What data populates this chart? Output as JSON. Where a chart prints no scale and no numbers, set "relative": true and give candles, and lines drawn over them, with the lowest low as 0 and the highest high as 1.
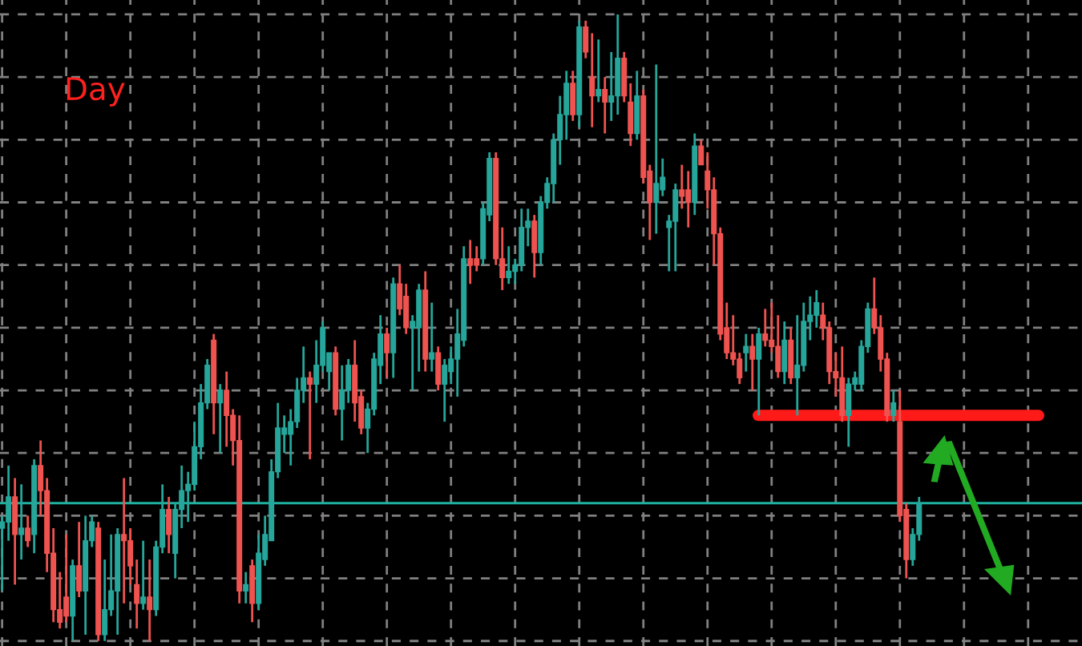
{
  "chart_data": {
    "type": "candlestick",
    "title": "Day",
    "relative": true,
    "grid": true,
    "tick_labels": false,
    "categories": [
      null,
      null,
      null,
      null,
      null,
      null,
      null,
      null,
      null,
      null,
      null,
      null,
      null,
      null,
      null,
      null,
      null,
      null,
      null,
      null,
      null,
      null,
      null,
      null,
      null,
      null,
      null,
      null,
      null,
      null,
      null,
      null,
      null,
      null,
      null,
      null,
      null,
      null,
      null,
      null,
      null,
      null,
      null,
      null,
      null,
      null,
      null,
      null,
      null,
      null,
      null,
      null,
      null,
      null,
      null,
      null,
      null,
      null,
      null,
      null,
      null,
      null,
      null,
      null,
      null,
      null,
      null,
      null,
      null,
      null,
      null,
      null,
      null,
      null,
      null,
      null,
      null,
      null,
      null,
      null,
      null,
      null,
      null,
      null,
      null,
      null,
      null,
      null,
      null,
      null,
      null,
      null,
      null,
      null,
      null,
      null,
      null,
      null,
      null,
      null,
      null,
      null,
      null,
      null,
      null,
      null,
      null,
      null,
      null,
      null,
      null,
      null,
      null,
      null,
      null,
      null,
      null,
      null,
      null,
      null,
      null,
      null,
      null,
      null,
      null,
      null,
      null,
      null,
      null,
      null,
      null,
      null,
      null,
      null,
      null,
      null,
      null,
      null,
      null,
      null,
      null,
      null,
      null,
      null
    ],
    "ohlc": [
      [
        0.18,
        0.2,
        0.08,
        0.19
      ],
      [
        0.19,
        0.28,
        0.16,
        0.23
      ],
      [
        0.23,
        0.26,
        0.09,
        0.17
      ],
      [
        0.17,
        0.25,
        0.13,
        0.18
      ],
      [
        0.18,
        0.2,
        0.15,
        0.16
      ],
      [
        0.17,
        0.29,
        0.14,
        0.28
      ],
      [
        0.28,
        0.32,
        0.2,
        0.24
      ],
      [
        0.24,
        0.26,
        0.11,
        0.14
      ],
      [
        0.14,
        0.18,
        0.03,
        0.05
      ],
      [
        0.05,
        0.11,
        0.02,
        0.03
      ],
      [
        0.07,
        0.17,
        0.03,
        0.04
      ],
      [
        0.04,
        0.13,
        0.0,
        0.12
      ],
      [
        0.12,
        0.19,
        0.07,
        0.08
      ],
      [
        0.08,
        0.2,
        0.01,
        0.16
      ],
      [
        0.16,
        0.2,
        0.15,
        0.19
      ],
      [
        0.18,
        0.19,
        0.0,
        0.01
      ],
      [
        0.01,
        0.13,
        0.0,
        0.05
      ],
      [
        0.05,
        0.17,
        0.04,
        0.08
      ],
      [
        0.08,
        0.18,
        0.01,
        0.17
      ],
      [
        0.17,
        0.26,
        0.06,
        0.16
      ],
      [
        0.16,
        0.18,
        0.09,
        0.12
      ],
      [
        0.09,
        0.13,
        0.02,
        0.06
      ],
      [
        0.06,
        0.16,
        0.05,
        0.07
      ],
      [
        0.07,
        0.13,
        0.0,
        0.05
      ],
      [
        0.05,
        0.16,
        0.04,
        0.15
      ],
      [
        0.15,
        0.25,
        0.14,
        0.21
      ],
      [
        0.21,
        0.23,
        0.14,
        0.17
      ],
      [
        0.14,
        0.22,
        0.1,
        0.21
      ],
      [
        0.21,
        0.28,
        0.18,
        0.24
      ],
      [
        0.24,
        0.27,
        0.19,
        0.25
      ],
      [
        0.25,
        0.35,
        0.24,
        0.31
      ],
      [
        0.31,
        0.41,
        0.29,
        0.38
      ],
      [
        0.38,
        0.45,
        0.37,
        0.44
      ],
      [
        0.48,
        0.49,
        0.33,
        0.38
      ],
      [
        0.38,
        0.41,
        0.3,
        0.4
      ],
      [
        0.4,
        0.43,
        0.31,
        0.36
      ],
      [
        0.36,
        0.37,
        0.28,
        0.32
      ],
      [
        0.32,
        0.36,
        0.06,
        0.08
      ],
      [
        0.08,
        0.11,
        0.06,
        0.09
      ],
      [
        0.12,
        0.13,
        0.03,
        0.06
      ],
      [
        0.06,
        0.17,
        0.05,
        0.14
      ],
      [
        0.13,
        0.2,
        0.12,
        0.17
      ],
      [
        0.16,
        0.29,
        0.16,
        0.27
      ],
      [
        0.27,
        0.38,
        0.26,
        0.34
      ],
      [
        0.33,
        0.36,
        0.3,
        0.34
      ],
      [
        0.33,
        0.37,
        0.28,
        0.35
      ],
      [
        0.35,
        0.42,
        0.34,
        0.4
      ],
      [
        0.4,
        0.47,
        0.38,
        0.42
      ],
      [
        0.42,
        0.43,
        0.29,
        0.41
      ],
      [
        0.41,
        0.48,
        0.38,
        0.44
      ],
      [
        0.44,
        0.51,
        0.43,
        0.5
      ],
      [
        0.43,
        0.46,
        0.4,
        0.46
      ],
      [
        0.46,
        0.47,
        0.36,
        0.37
      ],
      [
        0.37,
        0.44,
        0.32,
        0.4
      ],
      [
        0.4,
        0.45,
        0.38,
        0.44
      ],
      [
        0.44,
        0.48,
        0.35,
        0.38
      ],
      [
        0.39,
        0.4,
        0.33,
        0.34
      ],
      [
        0.34,
        0.38,
        0.3,
        0.37
      ],
      [
        0.37,
        0.46,
        0.36,
        0.45
      ],
      [
        0.44,
        0.52,
        0.41,
        0.49
      ],
      [
        0.49,
        0.5,
        0.42,
        0.46
      ],
      [
        0.46,
        0.58,
        0.42,
        0.57
      ],
      [
        0.57,
        0.6,
        0.52,
        0.53
      ],
      [
        0.55,
        0.57,
        0.49,
        0.5
      ],
      [
        0.5,
        0.52,
        0.4,
        0.51
      ],
      [
        0.5,
        0.57,
        0.43,
        0.56
      ],
      [
        0.56,
        0.59,
        0.43,
        0.45
      ],
      [
        0.45,
        0.54,
        0.43,
        0.46
      ],
      [
        0.46,
        0.47,
        0.4,
        0.41
      ],
      [
        0.41,
        0.45,
        0.35,
        0.44
      ],
      [
        0.43,
        0.47,
        0.41,
        0.45
      ],
      [
        0.45,
        0.53,
        0.39,
        0.49
      ],
      [
        0.48,
        0.63,
        0.47,
        0.61
      ],
      [
        0.61,
        0.64,
        0.57,
        0.6
      ],
      [
        0.61,
        0.63,
        0.59,
        0.6
      ],
      [
        0.61,
        0.7,
        0.6,
        0.69
      ],
      [
        0.68,
        0.78,
        0.67,
        0.77
      ],
      [
        0.77,
        0.78,
        0.6,
        0.61
      ],
      [
        0.61,
        0.66,
        0.56,
        0.58
      ],
      [
        0.58,
        0.63,
        0.57,
        0.59
      ],
      [
        0.59,
        0.61,
        0.57,
        0.6
      ],
      [
        0.6,
        0.69,
        0.59,
        0.66
      ],
      [
        0.66,
        0.69,
        0.63,
        0.67
      ],
      [
        0.67,
        0.68,
        0.58,
        0.62
      ],
      [
        0.62,
        0.71,
        0.6,
        0.7
      ],
      [
        0.7,
        0.74,
        0.69,
        0.73
      ],
      [
        0.73,
        0.81,
        0.7,
        0.8
      ],
      [
        0.8,
        0.87,
        0.76,
        0.84
      ],
      [
        0.84,
        0.91,
        0.8,
        0.89
      ],
      [
        0.89,
        0.91,
        0.83,
        0.84
      ],
      [
        0.84,
        0.99,
        0.82,
        0.98
      ],
      [
        0.98,
        0.99,
        0.93,
        0.94
      ],
      [
        0.9,
        0.97,
        0.82,
        0.87
      ],
      [
        0.87,
        0.96,
        0.86,
        0.88
      ],
      [
        0.88,
        0.9,
        0.81,
        0.86
      ],
      [
        0.86,
        0.94,
        0.83,
        0.87
      ],
      [
        0.87,
        1.0,
        0.84,
        0.93
      ],
      [
        0.93,
        0.94,
        0.86,
        0.87
      ],
      [
        0.86,
        0.89,
        0.79,
        0.81
      ],
      [
        0.81,
        0.91,
        0.8,
        0.87
      ],
      [
        0.87,
        0.88,
        0.73,
        0.74
      ],
      [
        0.75,
        0.76,
        0.64,
        0.7
      ],
      [
        0.7,
        0.92,
        0.65,
        0.73
      ],
      [
        0.72,
        0.77,
        0.71,
        0.74
      ],
      [
        0.66,
        0.68,
        0.59,
        0.67
      ],
      [
        0.67,
        0.73,
        0.59,
        0.72
      ],
      [
        0.72,
        0.76,
        0.69,
        0.71
      ],
      [
        0.72,
        0.75,
        0.66,
        0.7
      ],
      [
        0.7,
        0.81,
        0.68,
        0.79
      ],
      [
        0.79,
        0.8,
        0.76,
        0.76
      ],
      [
        0.75,
        0.78,
        0.69,
        0.72
      ],
      [
        0.72,
        0.74,
        0.6,
        0.65
      ],
      [
        0.65,
        0.66,
        0.48,
        0.49
      ],
      [
        0.5,
        0.54,
        0.45,
        0.46
      ],
      [
        0.46,
        0.52,
        0.44,
        0.45
      ],
      [
        0.45,
        0.46,
        0.41,
        0.42
      ],
      [
        0.46,
        0.49,
        0.43,
        0.47
      ],
      [
        0.47,
        0.49,
        0.4,
        0.45
      ],
      [
        0.45,
        0.5,
        0.36,
        0.49
      ],
      [
        0.49,
        0.53,
        0.47,
        0.48
      ],
      [
        0.48,
        0.54,
        0.46,
        0.47
      ],
      [
        0.47,
        0.52,
        0.42,
        0.43
      ],
      [
        0.43,
        0.51,
        0.41,
        0.48
      ],
      [
        0.48,
        0.5,
        0.41,
        0.42
      ],
      [
        0.42,
        0.52,
        0.36,
        0.44
      ],
      [
        0.44,
        0.54,
        0.43,
        0.51
      ],
      [
        0.51,
        0.55,
        0.48,
        0.52
      ],
      [
        0.52,
        0.56,
        0.5,
        0.54
      ],
      [
        0.52,
        0.54,
        0.48,
        0.5
      ],
      [
        0.5,
        0.51,
        0.41,
        0.43
      ],
      [
        0.43,
        0.46,
        0.39,
        0.42
      ],
      [
        0.42,
        0.47,
        0.35,
        0.36
      ],
      [
        0.36,
        0.42,
        0.31,
        0.41
      ],
      [
        0.41,
        0.43,
        0.4,
        0.42
      ],
      [
        0.41,
        0.48,
        0.4,
        0.47
      ],
      [
        0.47,
        0.54,
        0.46,
        0.53
      ],
      [
        0.53,
        0.58,
        0.49,
        0.5
      ],
      [
        0.5,
        0.52,
        0.43,
        0.45
      ],
      [
        0.45,
        0.46,
        0.35,
        0.36
      ],
      [
        0.36,
        0.4,
        0.35,
        0.38
      ],
      [
        0.35,
        0.4,
        0.19,
        0.2
      ],
      [
        0.21,
        0.22,
        0.1,
        0.13
      ],
      [
        0.13,
        0.18,
        0.12,
        0.17
      ],
      [
        0.17,
        0.23,
        0.16,
        0.22
      ]
    ],
    "ref_lines": [
      {
        "axis": "y",
        "value": 0.36,
        "color": "#ff1a1a"
      },
      {
        "axis": "y",
        "value": 0.22,
        "color": "#1fb0a0"
      }
    ]
  }
}
